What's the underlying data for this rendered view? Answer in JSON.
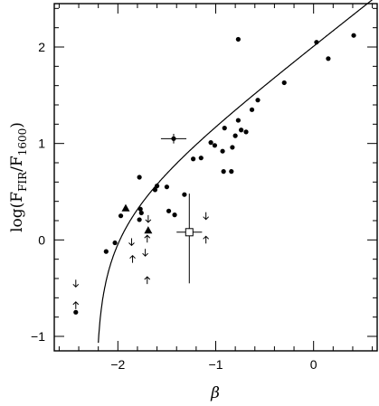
{
  "chart_data": {
    "type": "scatter",
    "xlabel": "β",
    "ylabel_main": "log(F",
    "ylabel_sub1": "FIR",
    "ylabel_mid": "/F",
    "ylabel_sub2": "1600",
    "ylabel_end": ")",
    "xlim": [
      -2.65,
      0.65
    ],
    "ylim": [
      -1.15,
      2.45
    ],
    "x_ticks": [
      -2,
      -1,
      0
    ],
    "x_tick_labels": [
      "−2",
      "−1",
      "0"
    ],
    "y_ticks": [
      -1,
      0,
      1,
      2
    ],
    "y_tick_labels": [
      "−1",
      "0",
      "1",
      "2"
    ],
    "grid": false,
    "points": [
      {
        "x": -2.43,
        "y": -0.75
      },
      {
        "x": -2.12,
        "y": -0.12
      },
      {
        "x": -2.03,
        "y": -0.03
      },
      {
        "x": -1.97,
        "y": 0.25
      },
      {
        "x": -1.78,
        "y": 0.65
      },
      {
        "x": -1.77,
        "y": 0.32
      },
      {
        "x": -1.76,
        "y": 0.28
      },
      {
        "x": -1.78,
        "y": 0.21
      },
      {
        "x": -1.62,
        "y": 0.52
      },
      {
        "x": -1.6,
        "y": 0.56
      },
      {
        "x": -1.5,
        "y": 0.55
      },
      {
        "x": -1.48,
        "y": 0.3
      },
      {
        "x": -1.42,
        "y": 0.26
      },
      {
        "x": -1.32,
        "y": 0.47
      },
      {
        "x": -1.23,
        "y": 0.84
      },
      {
        "x": -1.15,
        "y": 0.85
      },
      {
        "x": -1.05,
        "y": 1.01
      },
      {
        "x": -1.01,
        "y": 0.98
      },
      {
        "x": -0.93,
        "y": 0.92
      },
      {
        "x": -0.91,
        "y": 1.16
      },
      {
        "x": -0.92,
        "y": 0.71
      },
      {
        "x": -0.84,
        "y": 0.71
      },
      {
        "x": -0.83,
        "y": 0.96
      },
      {
        "x": -0.8,
        "y": 1.08
      },
      {
        "x": -0.77,
        "y": 1.24
      },
      {
        "x": -0.74,
        "y": 1.14
      },
      {
        "x": -0.69,
        "y": 1.12
      },
      {
        "x": -0.63,
        "y": 1.35
      },
      {
        "x": -0.57,
        "y": 1.45
      },
      {
        "x": -0.77,
        "y": 2.08
      },
      {
        "x": -0.3,
        "y": 1.63
      },
      {
        "x": 0.03,
        "y": 2.05
      },
      {
        "x": 0.15,
        "y": 1.88
      },
      {
        "x": 0.41,
        "y": 2.12
      }
    ],
    "triangles": [
      {
        "x": -1.92,
        "y": 0.33
      },
      {
        "x": -1.69,
        "y": 0.1
      }
    ],
    "errorbar_point": {
      "x": -1.43,
      "y": 1.05,
      "xerr": 0.13,
      "yerr": 0.05
    },
    "open_square": {
      "x": -1.27,
      "y": 0.08,
      "xerr_low": 0.13,
      "xerr_high": 0.13,
      "y_low": -0.45,
      "y_high": 0.48
    },
    "upper_limits": [
      {
        "x": -2.43,
        "y": -0.45
      },
      {
        "x": -1.86,
        "y": -0.02
      },
      {
        "x": -1.72,
        "y": -0.13
      },
      {
        "x": -1.69,
        "y": 0.22
      },
      {
        "x": -1.1,
        "y": 0.25
      }
    ],
    "lower_limits": [
      {
        "x": -2.43,
        "y": -0.68
      },
      {
        "x": -1.85,
        "y": -0.2
      },
      {
        "x": -1.7,
        "y": 0.01
      },
      {
        "x": -1.7,
        "y": -0.42
      },
      {
        "x": -1.1,
        "y": 0.0
      }
    ],
    "curve": {
      "type": "line",
      "x_start": -2.22,
      "x_end": 0.65
    }
  }
}
